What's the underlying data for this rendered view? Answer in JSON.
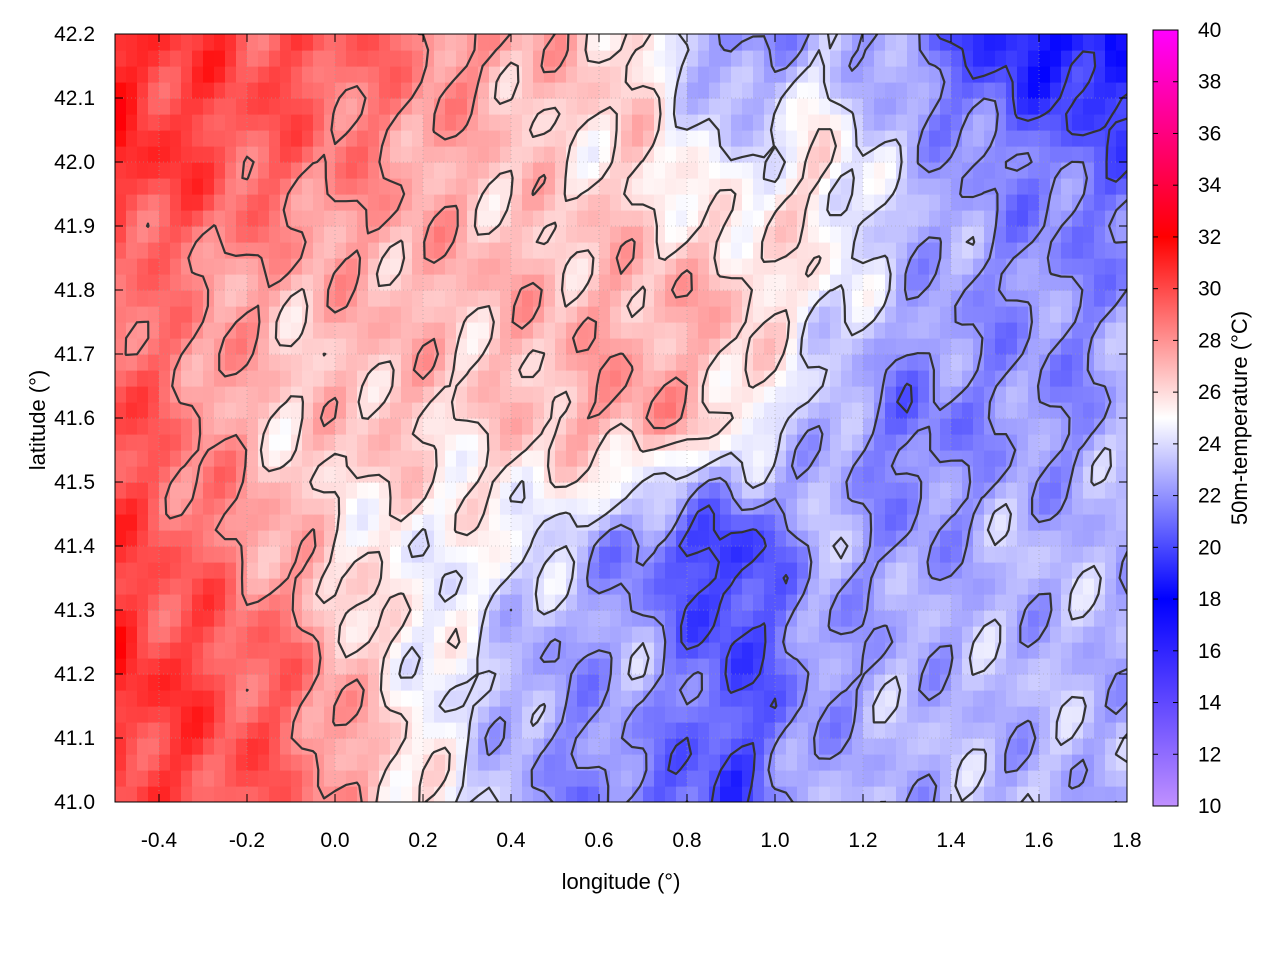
{
  "chart_data": {
    "type": "heatmap",
    "title": "",
    "xlabel": "longitude (°)",
    "ylabel": "latitude (°)",
    "colorbar_label": "50m-temperature (°C)",
    "xlim": [
      -0.5,
      1.8
    ],
    "ylim": [
      41.0,
      42.2
    ],
    "clim": [
      10,
      40
    ],
    "x_ticks": [
      "-0.4",
      "-0.2",
      "0.0",
      "0.2",
      "0.4",
      "0.6",
      "0.8",
      "1.0",
      "1.2",
      "1.4",
      "1.6",
      "1.8"
    ],
    "y_ticks": [
      "41.0",
      "41.1",
      "41.2",
      "41.3",
      "41.4",
      "41.5",
      "41.6",
      "41.7",
      "41.8",
      "41.9",
      "42.0",
      "42.1",
      "42.2"
    ],
    "colorbar_ticks": [
      "10",
      "12",
      "14",
      "16",
      "18",
      "20",
      "22",
      "24",
      "26",
      "28",
      "30",
      "32",
      "34",
      "36",
      "38",
      "40"
    ],
    "colormap": [
      {
        "value": 10,
        "color": "#c090ff"
      },
      {
        "value": 18,
        "color": "#0000ff"
      },
      {
        "value": 25,
        "color": "#ffffff"
      },
      {
        "value": 32,
        "color": "#ff0000"
      },
      {
        "value": 40,
        "color": "#ff00ff"
      }
    ],
    "grid": true,
    "contour_color": "#333333",
    "field_samples": {
      "x": [
        -0.5,
        -0.3,
        -0.1,
        0.1,
        0.3,
        0.5,
        0.7,
        0.9,
        1.1,
        1.3,
        1.5,
        1.7,
        1.8
      ],
      "y": [
        41.0,
        41.2,
        41.4,
        41.6,
        41.8,
        42.0,
        42.2
      ],
      "values": [
        [
          30,
          30,
          29,
          27,
          24,
          22,
          21,
          20,
          23,
          23,
          23,
          23,
          23
        ],
        [
          31,
          30,
          29,
          26,
          24,
          22,
          23,
          20,
          22,
          23,
          23,
          23,
          23
        ],
        [
          30,
          29,
          27,
          25,
          25,
          24,
          21,
          19,
          23,
          22,
          23,
          23,
          23
        ],
        [
          30,
          28,
          26,
          27,
          26,
          27,
          28,
          26,
          23,
          21,
          22,
          22,
          23
        ],
        [
          29,
          28,
          27,
          27,
          27,
          27,
          27,
          27,
          25,
          23,
          22,
          22,
          22
        ],
        [
          31,
          30,
          29,
          28,
          27,
          26,
          26,
          24,
          26,
          23,
          22,
          21,
          21
        ],
        [
          31,
          30,
          30,
          29,
          28,
          27,
          26,
          21,
          23,
          22,
          19,
          18,
          18
        ]
      ]
    }
  }
}
